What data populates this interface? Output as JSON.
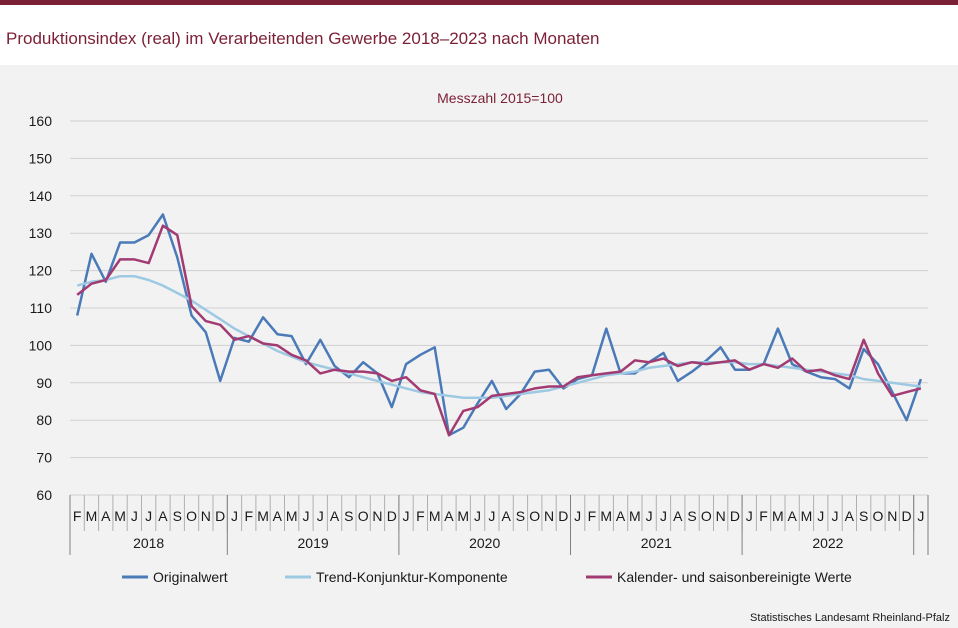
{
  "title": "Produktionsindex (real) im Verarbeitenden Gewerbe 2018–2023 nach Monaten",
  "source": "Statistisches Landesamt Rheinland-Pfalz",
  "colors": {
    "accent": "#7b1f36",
    "original": "#4a7ab8",
    "trend": "#9dc9e2",
    "adjusted": "#a23b72"
  },
  "chart_data": {
    "type": "line",
    "subtitle": "Messzahl 2015=100",
    "ylim": [
      60,
      160
    ],
    "yticks": [
      60,
      70,
      80,
      90,
      100,
      110,
      120,
      130,
      140,
      150,
      160
    ],
    "grid": true,
    "legend_position": "bottom",
    "months": [
      "F",
      "M",
      "A",
      "M",
      "J",
      "J",
      "A",
      "S",
      "O",
      "N",
      "D",
      "J",
      "F",
      "M",
      "A",
      "M",
      "J",
      "J",
      "A",
      "S",
      "O",
      "N",
      "D",
      "J",
      "F",
      "M",
      "A",
      "M",
      "J",
      "J",
      "A",
      "S",
      "O",
      "N",
      "D",
      "J",
      "F",
      "M",
      "A",
      "M",
      "J",
      "J",
      "A",
      "S",
      "O",
      "N",
      "D",
      "J",
      "F",
      "M",
      "A",
      "M",
      "J",
      "J",
      "A",
      "S",
      "O",
      "N",
      "D",
      "J"
    ],
    "years": [
      {
        "label": "2018",
        "start": 0,
        "end": 10
      },
      {
        "label": "2019",
        "start": 11,
        "end": 22
      },
      {
        "label": "2020",
        "start": 23,
        "end": 34
      },
      {
        "label": "2021",
        "start": 35,
        "end": 46
      },
      {
        "label": "2022",
        "start": 47,
        "end": 58
      }
    ],
    "series": [
      {
        "name": "Originalwert",
        "color": "#4a7ab8",
        "values": [
          108,
          124.5,
          117,
          127.5,
          127.5,
          129.5,
          135,
          123.5,
          108,
          103.5,
          90.5,
          102,
          101,
          107.5,
          103,
          102.5,
          95,
          101.5,
          94.5,
          91.5,
          95.5,
          92.5,
          83.5,
          95,
          97.5,
          99.5,
          76,
          78,
          84.5,
          90.5,
          83,
          87,
          93,
          93.5,
          88.5,
          91,
          92,
          104.5,
          92.5,
          92.5,
          95.5,
          98,
          90.5,
          93,
          96,
          99.5,
          93.5,
          93.5,
          95,
          104.5,
          95,
          93,
          91.5,
          91,
          88.5,
          99,
          95,
          87.5,
          80,
          91
        ]
      },
      {
        "name": "Trend-Konjunktur-Komponente",
        "color": "#9dc9e2",
        "values": [
          116,
          117,
          117.5,
          118.5,
          118.5,
          117.5,
          116,
          114,
          112,
          109.5,
          107,
          104.5,
          102.5,
          100.5,
          98.5,
          97,
          95.5,
          94.5,
          93.5,
          92.5,
          91.5,
          90.5,
          89.5,
          88.5,
          87.5,
          87,
          86.5,
          86,
          86,
          86,
          86.5,
          87,
          87.5,
          88,
          89,
          90,
          91,
          92,
          92.5,
          93,
          94,
          94.5,
          95,
          95.5,
          95.5,
          95.5,
          95.5,
          95,
          95,
          94.5,
          94,
          93.5,
          93,
          92.5,
          92,
          91,
          90.5,
          90,
          89.5,
          89
        ]
      },
      {
        "name": "Kalender- und saisonbereinigte Werte",
        "color": "#a23b72",
        "values": [
          113.5,
          116.5,
          117.5,
          123,
          123,
          122,
          132,
          129.5,
          110.5,
          106.5,
          105.5,
          101.5,
          102.5,
          100.5,
          100,
          97.5,
          96,
          92.5,
          93.5,
          93,
          93,
          92.5,
          90.5,
          91.5,
          88,
          87,
          76,
          82.5,
          83.5,
          86.5,
          87,
          87.5,
          88.5,
          89,
          89,
          91.5,
          92,
          92.5,
          93,
          96,
          95.5,
          96.5,
          94.5,
          95.5,
          95,
          95.5,
          96,
          93.5,
          95,
          94,
          96.5,
          93,
          93.5,
          92,
          91,
          101.5,
          92.5,
          86.5,
          87.5,
          88.5
        ]
      }
    ]
  }
}
